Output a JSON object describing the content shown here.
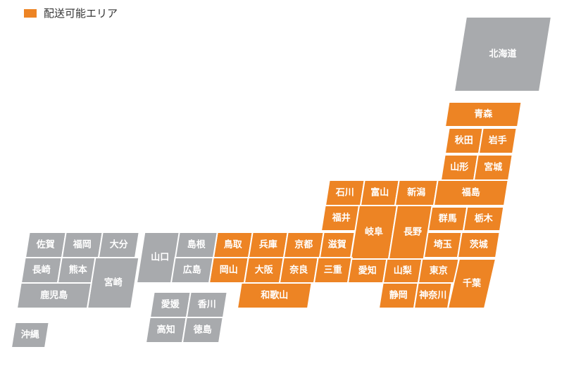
{
  "legend": {
    "label": "配送可能エリア",
    "color": "#ED8424"
  },
  "colors": {
    "available": "#ED8424",
    "unavailable": "#A8AAAD",
    "border": "#ffffff"
  },
  "prefectures": [
    {
      "id": "hokkaido",
      "name": "北海道",
      "available": false
    },
    {
      "id": "aomori",
      "name": "青森",
      "available": true
    },
    {
      "id": "akita",
      "name": "秋田",
      "available": true
    },
    {
      "id": "iwate",
      "name": "岩手",
      "available": true
    },
    {
      "id": "yamagata",
      "name": "山形",
      "available": true
    },
    {
      "id": "miyagi",
      "name": "宮城",
      "available": true
    },
    {
      "id": "ishikawa",
      "name": "石川",
      "available": true
    },
    {
      "id": "toyama",
      "name": "富山",
      "available": true
    },
    {
      "id": "niigata",
      "name": "新潟",
      "available": true
    },
    {
      "id": "fukushima",
      "name": "福島",
      "available": true
    },
    {
      "id": "fukui",
      "name": "福井",
      "available": true
    },
    {
      "id": "gifu",
      "name": "岐阜",
      "available": true
    },
    {
      "id": "nagano",
      "name": "長野",
      "available": true
    },
    {
      "id": "gunma",
      "name": "群馬",
      "available": true
    },
    {
      "id": "tochigi",
      "name": "栃木",
      "available": true
    },
    {
      "id": "saitama",
      "name": "埼玉",
      "available": true
    },
    {
      "id": "ibaraki",
      "name": "茨城",
      "available": true
    },
    {
      "id": "tottori",
      "name": "鳥取",
      "available": true
    },
    {
      "id": "hyogo",
      "name": "兵庫",
      "available": true
    },
    {
      "id": "kyoto",
      "name": "京都",
      "available": true
    },
    {
      "id": "shiga",
      "name": "滋賀",
      "available": true
    },
    {
      "id": "okayama",
      "name": "岡山",
      "available": true
    },
    {
      "id": "osaka",
      "name": "大阪",
      "available": true
    },
    {
      "id": "nara",
      "name": "奈良",
      "available": true
    },
    {
      "id": "mie",
      "name": "三重",
      "available": true
    },
    {
      "id": "aichi",
      "name": "愛知",
      "available": true
    },
    {
      "id": "yamanashi",
      "name": "山梨",
      "available": true
    },
    {
      "id": "tokyo",
      "name": "東京",
      "available": true
    },
    {
      "id": "chiba",
      "name": "千葉",
      "available": true
    },
    {
      "id": "wakayama",
      "name": "和歌山",
      "available": true
    },
    {
      "id": "shizuoka",
      "name": "静岡",
      "available": true
    },
    {
      "id": "kanagawa",
      "name": "神奈川",
      "available": true
    },
    {
      "id": "yamaguchi",
      "name": "山口",
      "available": false
    },
    {
      "id": "shimane",
      "name": "島根",
      "available": false
    },
    {
      "id": "hiroshima",
      "name": "広島",
      "available": false
    },
    {
      "id": "ehime",
      "name": "愛媛",
      "available": false
    },
    {
      "id": "kagawa",
      "name": "香川",
      "available": false
    },
    {
      "id": "kochi",
      "name": "高知",
      "available": false
    },
    {
      "id": "tokushima",
      "name": "徳島",
      "available": false
    },
    {
      "id": "saga",
      "name": "佐賀",
      "available": false
    },
    {
      "id": "fukuoka",
      "name": "福岡",
      "available": false
    },
    {
      "id": "oita",
      "name": "大分",
      "available": false
    },
    {
      "id": "nagasaki",
      "name": "長崎",
      "available": false
    },
    {
      "id": "kumamoto",
      "name": "熊本",
      "available": false
    },
    {
      "id": "miyazaki",
      "name": "宮崎",
      "available": false
    },
    {
      "id": "kagoshima",
      "name": "鹿児島",
      "available": false
    },
    {
      "id": "okinawa",
      "name": "沖縄",
      "available": false
    }
  ]
}
